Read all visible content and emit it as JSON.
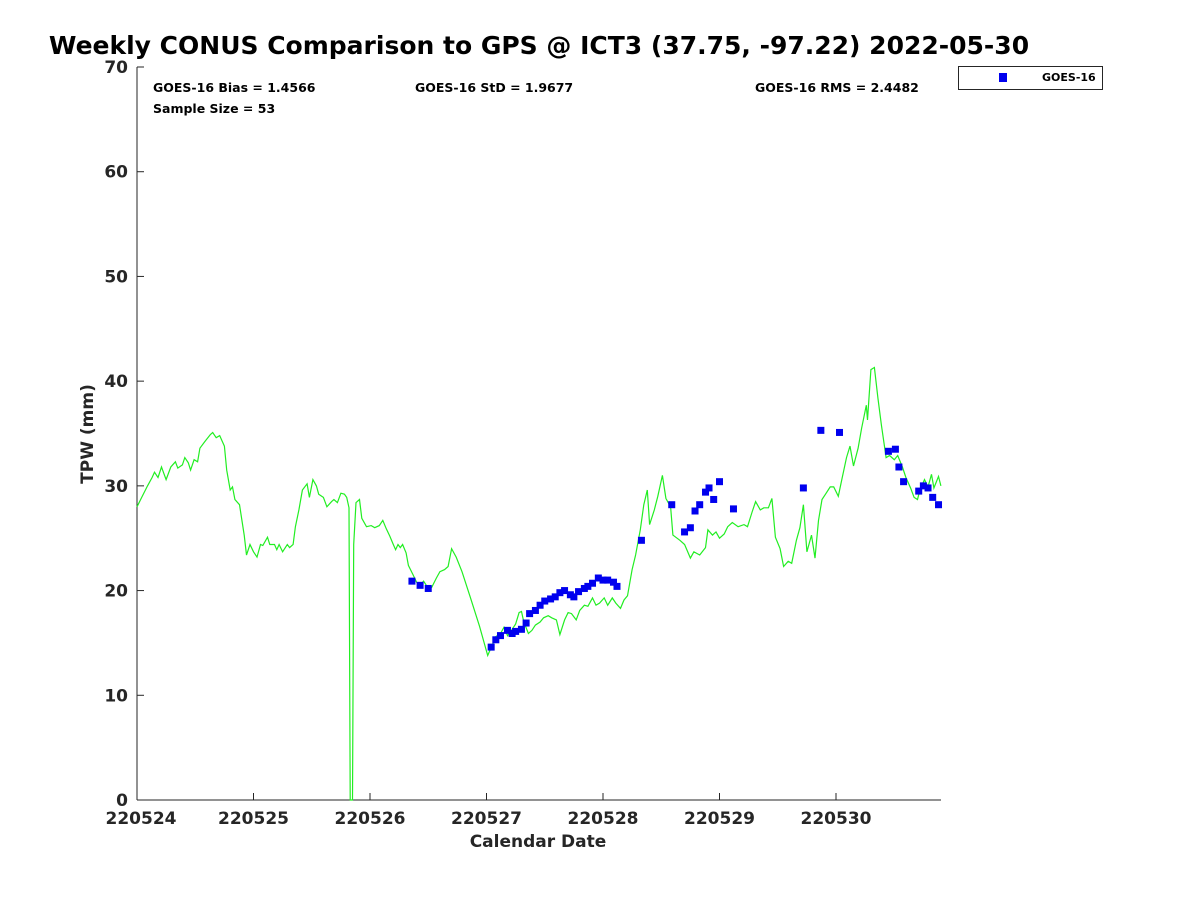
{
  "chart_data": {
    "type": "scatter",
    "title": "Weekly CONUS Comparison to GPS @ ICT3 (37.75, -97.22) 2022-05-30",
    "xlabel": "Calendar Date",
    "ylabel": "TPW (mm)",
    "x_units": "days since 220524",
    "xlim": [
      0,
      6.9
    ],
    "ylim": [
      0,
      70
    ],
    "xticks": [
      0,
      1,
      2,
      3,
      4,
      5,
      6
    ],
    "xtick_labels": [
      "220524",
      "220525",
      "220526",
      "220527",
      "220528",
      "220529",
      "220530"
    ],
    "yticks": [
      0,
      10,
      20,
      30,
      40,
      50,
      60,
      70
    ],
    "ytick_labels": [
      "0",
      "10",
      "20",
      "30",
      "40",
      "50",
      "60",
      "70"
    ],
    "grid": false,
    "legend": {
      "placement": "top-right-outside",
      "entries": [
        "GOES-16"
      ]
    },
    "annotations": {
      "bias": "GOES-16 Bias = 1.4566",
      "std": "GOES-16 StD = 1.9677",
      "rms": "GOES-16 RMS = 2.4482",
      "sample": "Sample Size = 53"
    },
    "series": [
      {
        "name": "GOES-16",
        "type": "scatter",
        "color": "#0000ee",
        "points": [
          [
            2.36,
            20.9
          ],
          [
            2.43,
            20.5
          ],
          [
            2.5,
            20.2
          ],
          [
            3.04,
            14.6
          ],
          [
            3.08,
            15.3
          ],
          [
            3.12,
            15.7
          ],
          [
            3.18,
            16.2
          ],
          [
            3.22,
            15.9
          ],
          [
            3.25,
            16.1
          ],
          [
            3.3,
            16.3
          ],
          [
            3.34,
            16.9
          ],
          [
            3.37,
            17.8
          ],
          [
            3.42,
            18.1
          ],
          [
            3.46,
            18.6
          ],
          [
            3.5,
            19.0
          ],
          [
            3.55,
            19.2
          ],
          [
            3.59,
            19.4
          ],
          [
            3.63,
            19.8
          ],
          [
            3.67,
            20.0
          ],
          [
            3.72,
            19.6
          ],
          [
            3.75,
            19.4
          ],
          [
            3.79,
            19.9
          ],
          [
            3.84,
            20.2
          ],
          [
            3.87,
            20.4
          ],
          [
            3.91,
            20.7
          ],
          [
            3.96,
            21.2
          ],
          [
            4.0,
            21.0
          ],
          [
            4.04,
            21.0
          ],
          [
            4.09,
            20.8
          ],
          [
            4.12,
            20.4
          ],
          [
            4.33,
            24.8
          ],
          [
            4.59,
            28.2
          ],
          [
            4.7,
            25.6
          ],
          [
            4.75,
            26.0
          ],
          [
            4.79,
            27.6
          ],
          [
            4.83,
            28.2
          ],
          [
            4.88,
            29.4
          ],
          [
            4.91,
            29.8
          ],
          [
            4.95,
            28.7
          ],
          [
            5.0,
            30.4
          ],
          [
            5.12,
            27.8
          ],
          [
            5.72,
            29.8
          ],
          [
            5.87,
            35.3
          ],
          [
            6.03,
            35.1
          ],
          [
            6.45,
            33.3
          ],
          [
            6.51,
            33.5
          ],
          [
            6.54,
            31.8
          ],
          [
            6.58,
            30.4
          ],
          [
            6.71,
            29.5
          ],
          [
            6.75,
            30.0
          ],
          [
            6.79,
            29.8
          ],
          [
            6.83,
            28.9
          ],
          [
            6.88,
            28.2
          ]
        ]
      },
      {
        "name": "GPS",
        "type": "line",
        "color": "#22ee22",
        "points": [
          [
            0.0,
            28.0
          ],
          [
            0.04,
            28.9
          ],
          [
            0.09,
            30.0
          ],
          [
            0.13,
            30.8
          ],
          [
            0.15,
            31.3
          ],
          [
            0.18,
            30.8
          ],
          [
            0.21,
            31.8
          ],
          [
            0.22,
            31.5
          ],
          [
            0.25,
            30.6
          ],
          [
            0.29,
            31.8
          ],
          [
            0.33,
            32.3
          ],
          [
            0.35,
            31.7
          ],
          [
            0.39,
            32.0
          ],
          [
            0.41,
            32.7
          ],
          [
            0.44,
            32.2
          ],
          [
            0.46,
            31.5
          ],
          [
            0.49,
            32.5
          ],
          [
            0.52,
            32.3
          ],
          [
            0.54,
            33.6
          ],
          [
            0.58,
            34.2
          ],
          [
            0.63,
            34.9
          ],
          [
            0.65,
            35.1
          ],
          [
            0.68,
            34.6
          ],
          [
            0.71,
            34.8
          ],
          [
            0.75,
            33.8
          ],
          [
            0.77,
            31.5
          ],
          [
            0.8,
            29.6
          ],
          [
            0.82,
            29.9
          ],
          [
            0.84,
            28.7
          ],
          [
            0.88,
            28.2
          ],
          [
            0.92,
            25.3
          ],
          [
            0.94,
            23.4
          ],
          [
            0.97,
            24.4
          ],
          [
            1.0,
            23.7
          ],
          [
            1.03,
            23.2
          ],
          [
            1.06,
            24.4
          ],
          [
            1.08,
            24.3
          ],
          [
            1.12,
            25.1
          ],
          [
            1.14,
            24.4
          ],
          [
            1.18,
            24.4
          ],
          [
            1.2,
            23.9
          ],
          [
            1.22,
            24.4
          ],
          [
            1.25,
            23.7
          ],
          [
            1.29,
            24.4
          ],
          [
            1.31,
            24.1
          ],
          [
            1.34,
            24.4
          ],
          [
            1.36,
            26.1
          ],
          [
            1.39,
            27.7
          ],
          [
            1.42,
            29.6
          ],
          [
            1.46,
            30.2
          ],
          [
            1.48,
            28.9
          ],
          [
            1.51,
            30.6
          ],
          [
            1.54,
            30.0
          ],
          [
            1.56,
            29.2
          ],
          [
            1.6,
            28.9
          ],
          [
            1.63,
            28.0
          ],
          [
            1.67,
            28.5
          ],
          [
            1.69,
            28.7
          ],
          [
            1.72,
            28.4
          ],
          [
            1.75,
            29.3
          ],
          [
            1.78,
            29.2
          ],
          [
            1.8,
            28.9
          ],
          [
            1.82,
            27.9
          ],
          [
            1.83,
            0
          ],
          [
            1.85,
            0
          ],
          [
            1.86,
            24.4
          ],
          [
            1.88,
            28.4
          ],
          [
            1.91,
            28.7
          ],
          [
            1.93,
            26.9
          ],
          [
            1.97,
            26.1
          ],
          [
            2.01,
            26.2
          ],
          [
            2.04,
            26.0
          ],
          [
            2.08,
            26.2
          ],
          [
            2.11,
            26.7
          ],
          [
            2.14,
            25.9
          ],
          [
            2.17,
            25.2
          ],
          [
            2.2,
            24.4
          ],
          [
            2.22,
            23.9
          ],
          [
            2.24,
            24.4
          ],
          [
            2.26,
            24.1
          ],
          [
            2.28,
            24.4
          ],
          [
            2.31,
            23.6
          ],
          [
            2.33,
            22.4
          ],
          [
            2.37,
            21.5
          ],
          [
            2.4,
            20.8
          ],
          [
            2.43,
            20.5
          ],
          [
            2.46,
            20.9
          ],
          [
            2.5,
            20.2
          ],
          [
            2.53,
            20.3
          ],
          [
            2.57,
            21.2
          ],
          [
            2.6,
            21.8
          ],
          [
            2.64,
            22.0
          ],
          [
            2.67,
            22.3
          ],
          [
            2.7,
            24.0
          ],
          [
            2.74,
            23.2
          ],
          [
            2.79,
            21.8
          ],
          [
            2.86,
            19.4
          ],
          [
            2.94,
            16.6
          ],
          [
            3.01,
            13.8
          ],
          [
            3.05,
            14.8
          ],
          [
            3.08,
            15.6
          ],
          [
            3.12,
            15.9
          ],
          [
            3.15,
            16.5
          ],
          [
            3.18,
            15.7
          ],
          [
            3.22,
            16.3
          ],
          [
            3.25,
            16.8
          ],
          [
            3.28,
            17.9
          ],
          [
            3.3,
            18.0
          ],
          [
            3.32,
            17.0
          ],
          [
            3.36,
            15.9
          ],
          [
            3.39,
            16.2
          ],
          [
            3.42,
            16.7
          ],
          [
            3.46,
            17.0
          ],
          [
            3.49,
            17.4
          ],
          [
            3.53,
            17.6
          ],
          [
            3.56,
            17.4
          ],
          [
            3.6,
            17.2
          ],
          [
            3.63,
            15.8
          ],
          [
            3.67,
            17.2
          ],
          [
            3.7,
            17.9
          ],
          [
            3.73,
            17.8
          ],
          [
            3.77,
            17.2
          ],
          [
            3.8,
            18.1
          ],
          [
            3.84,
            18.6
          ],
          [
            3.87,
            18.5
          ],
          [
            3.91,
            19.3
          ],
          [
            3.94,
            18.6
          ],
          [
            3.97,
            18.8
          ],
          [
            4.01,
            19.3
          ],
          [
            4.04,
            18.6
          ],
          [
            4.08,
            19.3
          ],
          [
            4.11,
            18.8
          ],
          [
            4.15,
            18.3
          ],
          [
            4.18,
            19.1
          ],
          [
            4.21,
            19.5
          ],
          [
            4.25,
            22.0
          ],
          [
            4.28,
            23.4
          ],
          [
            4.32,
            25.8
          ],
          [
            4.35,
            28.2
          ],
          [
            4.38,
            29.6
          ],
          [
            4.4,
            26.3
          ],
          [
            4.44,
            27.7
          ],
          [
            4.47,
            29.0
          ],
          [
            4.51,
            31.0
          ],
          [
            4.54,
            28.8
          ],
          [
            4.58,
            28.0
          ],
          [
            4.6,
            25.3
          ],
          [
            4.66,
            24.8
          ],
          [
            4.7,
            24.4
          ],
          [
            4.75,
            23.1
          ],
          [
            4.78,
            23.7
          ],
          [
            4.83,
            23.4
          ],
          [
            4.88,
            24.1
          ],
          [
            4.9,
            25.8
          ],
          [
            4.94,
            25.3
          ],
          [
            4.97,
            25.6
          ],
          [
            5.0,
            25.0
          ],
          [
            5.04,
            25.4
          ],
          [
            5.07,
            26.1
          ],
          [
            5.11,
            26.5
          ],
          [
            5.16,
            26.1
          ],
          [
            5.21,
            26.3
          ],
          [
            5.24,
            26.1
          ],
          [
            5.28,
            27.5
          ],
          [
            5.31,
            28.5
          ],
          [
            5.35,
            27.7
          ],
          [
            5.38,
            27.9
          ],
          [
            5.42,
            27.9
          ],
          [
            5.45,
            28.8
          ],
          [
            5.48,
            25.1
          ],
          [
            5.52,
            24.0
          ],
          [
            5.55,
            22.3
          ],
          [
            5.59,
            22.8
          ],
          [
            5.62,
            22.6
          ],
          [
            5.66,
            24.8
          ],
          [
            5.69,
            26.0
          ],
          [
            5.72,
            28.2
          ],
          [
            5.75,
            23.7
          ],
          [
            5.79,
            25.3
          ],
          [
            5.82,
            23.1
          ],
          [
            5.85,
            26.7
          ],
          [
            5.88,
            28.7
          ],
          [
            5.91,
            29.2
          ],
          [
            5.95,
            29.9
          ],
          [
            5.98,
            29.9
          ],
          [
            6.02,
            29.0
          ],
          [
            6.05,
            30.6
          ],
          [
            6.09,
            32.7
          ],
          [
            6.12,
            33.8
          ],
          [
            6.15,
            31.9
          ],
          [
            6.19,
            33.6
          ],
          [
            6.22,
            35.5
          ],
          [
            6.26,
            37.7
          ],
          [
            6.27,
            36.3
          ],
          [
            6.3,
            41.1
          ],
          [
            6.33,
            41.3
          ],
          [
            6.36,
            38.4
          ],
          [
            6.39,
            35.8
          ],
          [
            6.43,
            32.7
          ],
          [
            6.46,
            32.9
          ],
          [
            6.5,
            32.5
          ],
          [
            6.53,
            32.9
          ],
          [
            6.57,
            31.8
          ],
          [
            6.6,
            30.8
          ],
          [
            6.64,
            29.8
          ],
          [
            6.67,
            28.9
          ],
          [
            6.7,
            28.7
          ],
          [
            6.72,
            29.6
          ],
          [
            6.76,
            30.6
          ],
          [
            6.79,
            29.9
          ],
          [
            6.82,
            31.1
          ],
          [
            6.84,
            29.8
          ],
          [
            6.88,
            30.9
          ],
          [
            6.9,
            30.0
          ]
        ]
      }
    ]
  }
}
